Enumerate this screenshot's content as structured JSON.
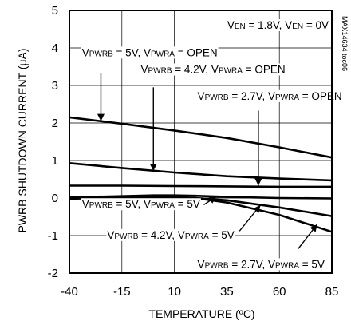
{
  "chart_data": {
    "type": "line",
    "title": "",
    "xlabel": "TEMPERATURE (ºC)",
    "ylabel": "PWRB SHUTDOWN CURRENT (μA)",
    "xlim": [
      -40,
      85
    ],
    "ylim": [
      -2,
      5
    ],
    "xticks": [
      -40,
      -15,
      10,
      35,
      60,
      85
    ],
    "yticks": [
      -2,
      -1,
      0,
      1,
      2,
      3,
      4,
      5
    ],
    "grid": true,
    "figure_id": "MAX14634 toc06",
    "conditions": {
      "parts": [
        {
          "t": "V",
          "sub": false,
          "ov": false
        },
        {
          "t": "EN",
          "sub": true,
          "ov": true
        },
        {
          "t": " = 1.8V, V",
          "sub": false,
          "ov": false
        },
        {
          "t": "EN",
          "sub": true,
          "ov": false
        },
        {
          "t": " = 0V",
          "sub": false,
          "ov": false
        }
      ]
    },
    "series": [
      {
        "name": "VPWRB = 5V, VPWRA = OPEN",
        "x": [
          -40,
          -15,
          10,
          35,
          60,
          85
        ],
        "y": [
          2.15,
          1.98,
          1.8,
          1.6,
          1.35,
          1.08
        ]
      },
      {
        "name": "VPWRB = 4.2V, VPWRA = OPEN",
        "x": [
          -40,
          -15,
          10,
          35,
          60,
          85
        ],
        "y": [
          0.93,
          0.8,
          0.68,
          0.58,
          0.52,
          0.47
        ]
      },
      {
        "name": "VPWRB = 2.7V, VPWRA = OPEN",
        "x": [
          -40,
          -15,
          10,
          35,
          60,
          85
        ],
        "y": [
          0.33,
          0.33,
          0.32,
          0.31,
          0.3,
          0.3
        ]
      },
      {
        "name": "VPWRB = 5V, VPWRA = 5V",
        "x": [
          -40,
          -15,
          0,
          10,
          20,
          35,
          60,
          85
        ],
        "y": [
          0.02,
          0.05,
          0.07,
          0.07,
          0.06,
          0.03,
          0.0,
          -0.01
        ]
      },
      {
        "name": "VPWRB = 4.2V, VPWRA = 5V",
        "x": [
          -40,
          -15,
          10,
          20,
          35,
          60,
          85
        ],
        "y": [
          0.0,
          0.02,
          0.02,
          0.0,
          -0.06,
          -0.25,
          -0.48
        ]
      },
      {
        "name": "VPWRB = 2.7V, VPWRA = 5V",
        "x": [
          -40,
          -15,
          0,
          10,
          20,
          35,
          60,
          85
        ],
        "y": [
          -0.02,
          0.02,
          0.03,
          0.03,
          0.0,
          -0.12,
          -0.45,
          -0.9
        ]
      }
    ],
    "annotations": [
      {
        "parts": [
          [
            "V",
            false
          ],
          [
            "PWRB",
            true
          ],
          [
            " = 5V, V",
            false
          ],
          [
            "PWRA",
            true
          ],
          [
            " = OPEN",
            false
          ]
        ],
        "series": 0,
        "tx": -34,
        "ty": 3.78,
        "ax1": -25,
        "ay1": 3.33,
        "ax2": -25,
        "ay2": 2.05
      },
      {
        "parts": [
          [
            "V",
            false
          ],
          [
            "PWRB",
            true
          ],
          [
            " = 4.2V, V",
            false
          ],
          [
            "PWRA",
            true
          ],
          [
            " = OPEN",
            false
          ]
        ],
        "series": 1,
        "tx": -6,
        "ty": 3.33,
        "ax1": 0,
        "ay1": 2.95,
        "ax2": 0,
        "ay2": 0.72
      },
      {
        "parts": [
          [
            "V",
            false
          ],
          [
            "PWRB",
            true
          ],
          [
            " = 2.7V, V",
            false
          ],
          [
            "PWRA",
            true
          ],
          [
            " = OPEN",
            false
          ]
        ],
        "series": 2,
        "tx": 21,
        "ty": 2.62,
        "ax1": 50,
        "ay1": 2.33,
        "ax2": 50,
        "ay2": 0.33
      },
      {
        "parts": [
          [
            "V",
            false
          ],
          [
            "PWRB",
            true
          ],
          [
            " = 5V, V",
            false
          ],
          [
            "PWRA",
            true
          ],
          [
            " = 5V",
            false
          ]
        ],
        "series": 3,
        "tx": -34,
        "ty": -0.26,
        "ax1": 24,
        "ay1": -0.18,
        "ax2": 30,
        "ay2": 0.04
      },
      {
        "parts": [
          [
            "V",
            false
          ],
          [
            "PWRB",
            true
          ],
          [
            " = 4.2V, V",
            false
          ],
          [
            "PWRA",
            true
          ],
          [
            " = 5V",
            false
          ]
        ],
        "series": 4,
        "tx": -22,
        "ty": -1.08,
        "ax1": 41,
        "ay1": -0.88,
        "ax2": 51,
        "ay2": -0.19
      },
      {
        "parts": [
          [
            "V",
            false
          ],
          [
            "PWRB",
            true
          ],
          [
            " = 2.7V, V",
            false
          ],
          [
            "PWRA",
            true
          ],
          [
            " = 5V",
            false
          ]
        ],
        "series": 5,
        "tx": 21,
        "ty": -1.86,
        "ax1": 69,
        "ay1": -1.35,
        "ax2": 78,
        "ay2": -0.7
      }
    ]
  }
}
